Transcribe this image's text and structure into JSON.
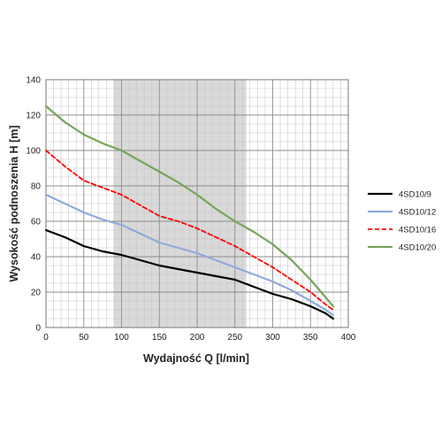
{
  "chart_data": {
    "type": "line",
    "title": "",
    "xlabel": "Wydajność Q [l/min]",
    "ylabel": "Wysokość podnoszenia H [m]",
    "xlim": [
      0,
      400
    ],
    "ylim": [
      0,
      140
    ],
    "x_ticks": [
      0,
      50,
      100,
      150,
      200,
      250,
      300,
      350,
      400
    ],
    "y_ticks": [
      0,
      20,
      40,
      60,
      80,
      100,
      120,
      140
    ],
    "x_tick_labels": [
      "0",
      "50",
      "100",
      "150",
      "200",
      "250",
      "300",
      "350",
      "400"
    ],
    "y_tick_labels": [
      "0",
      "20",
      "40",
      "60",
      "80",
      "100",
      "120",
      "140"
    ],
    "grid": true,
    "legend_position": "right",
    "shaded_region": {
      "x_from": 90,
      "x_to": 265,
      "color": "#d9d9d9"
    },
    "series": [
      {
        "name": "4SD10/9",
        "color": "#000000",
        "dashed": false,
        "x": [
          0,
          25,
          50,
          75,
          100,
          125,
          150,
          175,
          200,
          225,
          250,
          275,
          300,
          325,
          350,
          370,
          380
        ],
        "y": [
          55,
          51,
          46,
          43,
          41,
          38,
          35,
          33,
          31,
          29,
          27,
          23,
          19,
          16,
          12,
          8,
          5
        ]
      },
      {
        "name": "4SD10/12",
        "color": "#8faadc",
        "dashed": false,
        "x": [
          0,
          25,
          50,
          75,
          100,
          125,
          150,
          175,
          200,
          225,
          250,
          275,
          300,
          325,
          350,
          370,
          380
        ],
        "y": [
          75,
          70,
          65,
          61,
          58,
          53,
          48,
          45,
          42,
          38,
          34,
          30,
          26,
          21,
          15,
          10,
          7
        ]
      },
      {
        "name": "4SD10/16",
        "color": "#ff0000",
        "dashed": true,
        "x": [
          0,
          25,
          50,
          75,
          100,
          125,
          150,
          175,
          200,
          225,
          250,
          275,
          300,
          325,
          350,
          370,
          380
        ],
        "y": [
          100,
          91,
          83,
          79,
          75,
          69,
          63,
          60,
          56,
          51,
          46,
          40,
          34,
          27,
          20,
          13,
          10
        ]
      },
      {
        "name": "4SD10/20",
        "color": "#77a55a",
        "dashed": false,
        "x": [
          0,
          25,
          50,
          75,
          100,
          125,
          150,
          175,
          200,
          225,
          250,
          275,
          300,
          325,
          350,
          370,
          380
        ],
        "y": [
          125,
          116,
          109,
          104,
          100,
          94,
          88,
          82,
          75,
          67,
          60,
          54,
          47,
          38,
          27,
          17,
          12
        ]
      }
    ]
  }
}
